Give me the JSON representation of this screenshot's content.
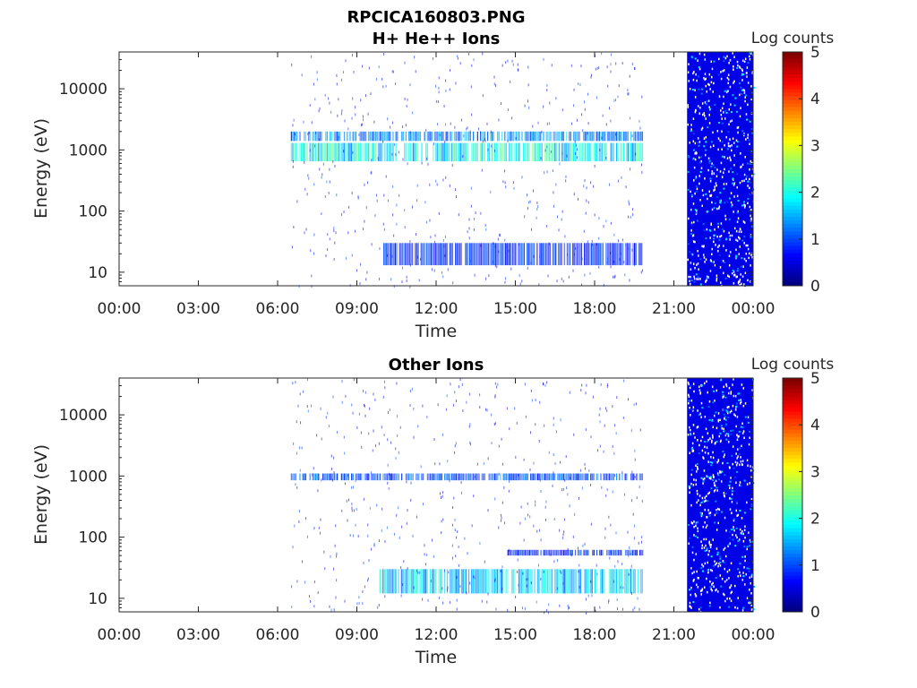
{
  "figure": {
    "title": "RPCICA160803.PNG"
  },
  "chart_data": [
    {
      "type": "heatmap",
      "title": "H+ He++ Ions",
      "xlabel": "Time",
      "ylabel": "Energy (eV)",
      "xticks": [
        "00:00",
        "03:00",
        "06:00",
        "09:00",
        "12:00",
        "15:00",
        "18:00",
        "21:00",
        "00:00"
      ],
      "xlim_hours": [
        0,
        24
      ],
      "yscale": "log",
      "ylim": [
        6,
        40000
      ],
      "yticks": [
        10,
        100,
        1000,
        10000
      ],
      "ytick_labels": [
        "10",
        "100",
        "1000",
        "10000"
      ],
      "colorbar": {
        "label": "Log counts",
        "range": [
          0,
          5
        ],
        "ticks": [
          "0",
          "1",
          "2",
          "3",
          "4",
          "5"
        ],
        "colormap": "jet"
      },
      "features": [
        {
          "name": "low-energy-band",
          "t_start": 10.0,
          "t_end": 19.8,
          "e_min": 13,
          "e_max": 30,
          "level": 1.0
        },
        {
          "name": "main-band-1000eV",
          "t_start": 6.5,
          "t_end": 19.8,
          "e_min": 650,
          "e_max": 1300,
          "level": 2.2
        },
        {
          "name": "band-1500eV",
          "t_start": 6.5,
          "t_end": 19.8,
          "e_min": 1400,
          "e_max": 2000,
          "level": 1.5
        },
        {
          "name": "dense-region",
          "t_start": 21.5,
          "t_end": 24.0,
          "e_min": 6,
          "e_max": 40000,
          "level": 0.5
        }
      ]
    },
    {
      "type": "heatmap",
      "title": "Other Ions",
      "xlabel": "Time",
      "ylabel": "Energy (eV)",
      "xticks": [
        "00:00",
        "03:00",
        "06:00",
        "09:00",
        "12:00",
        "15:00",
        "18:00",
        "21:00",
        "00:00"
      ],
      "xlim_hours": [
        0,
        24
      ],
      "yscale": "log",
      "ylim": [
        6,
        40000
      ],
      "yticks": [
        10,
        100,
        1000,
        10000
      ],
      "ytick_labels": [
        "10",
        "100",
        "1000",
        "10000"
      ],
      "colorbar": {
        "label": "Log counts",
        "range": [
          0,
          5
        ],
        "ticks": [
          "0",
          "1",
          "2",
          "3",
          "4",
          "5"
        ],
        "colormap": "jet"
      },
      "features": [
        {
          "name": "low-energy-band",
          "t_start": 9.8,
          "t_end": 19.8,
          "e_min": 12,
          "e_max": 30,
          "level": 1.9
        },
        {
          "name": "band-1000eV",
          "t_start": 6.5,
          "t_end": 19.8,
          "e_min": 850,
          "e_max": 1100,
          "level": 1.2
        },
        {
          "name": "band-55eV",
          "t_start": 14.7,
          "t_end": 19.8,
          "e_min": 50,
          "e_max": 62,
          "level": 1.0
        },
        {
          "name": "dense-region",
          "t_start": 21.5,
          "t_end": 24.0,
          "e_min": 6,
          "e_max": 40000,
          "level": 0.5
        }
      ]
    }
  ]
}
